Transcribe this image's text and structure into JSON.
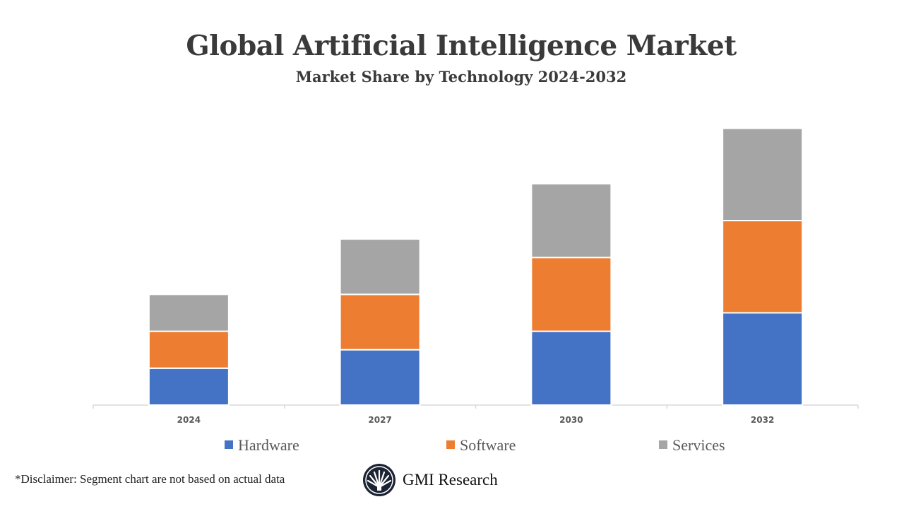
{
  "chart_data": {
    "type": "bar",
    "stacked": true,
    "title": "Global Artificial Intelligence Market",
    "subtitle": "Market Share by Technology 2024-2032",
    "categories": [
      "2024",
      "2027",
      "2030",
      "2032"
    ],
    "series": [
      {
        "name": "Hardware",
        "values": [
          2,
          3,
          4,
          5
        ],
        "color": "#4472C4"
      },
      {
        "name": "Software",
        "values": [
          2,
          3,
          4,
          5
        ],
        "color": "#ED7D31"
      },
      {
        "name": "Services",
        "values": [
          2,
          3,
          4,
          5
        ],
        "color": "#A5A5A5"
      }
    ],
    "xlabel": "",
    "ylabel": "",
    "y_axis_visible": false,
    "grid": false,
    "legend_position": "bottom"
  },
  "footer": {
    "disclaimer": "*Disclaimer:  Segment chart are not based on actual data",
    "brand": "GMI Research"
  }
}
